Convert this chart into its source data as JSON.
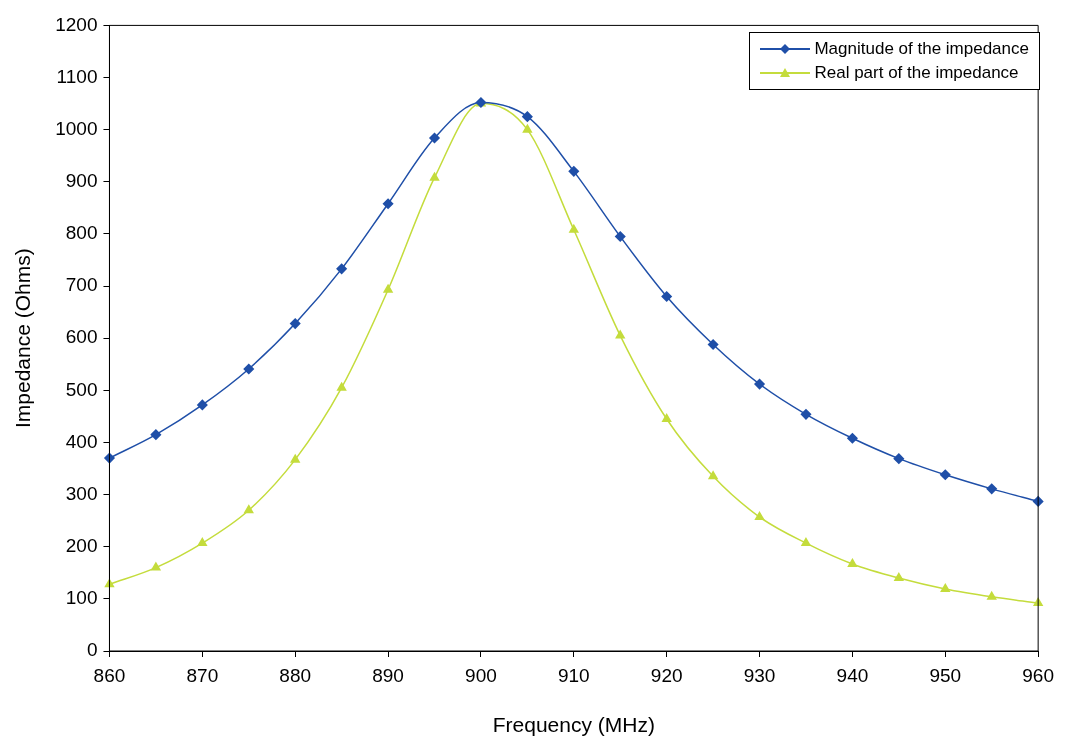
{
  "chart_data": {
    "type": "line",
    "xlabel": "Frequency (MHz)",
    "ylabel": "Impedance (Ohms)",
    "x": [
      860,
      865,
      870,
      875,
      880,
      885,
      890,
      895,
      900,
      905,
      910,
      915,
      920,
      925,
      930,
      935,
      940,
      945,
      950,
      955,
      960
    ],
    "xlim": [
      860,
      960
    ],
    "xticks": [
      860,
      870,
      880,
      890,
      900,
      910,
      920,
      930,
      940,
      950,
      960
    ],
    "ylim": [
      0,
      1200
    ],
    "yticks": [
      0,
      100,
      200,
      300,
      400,
      500,
      600,
      700,
      800,
      900,
      1000,
      1100,
      1200
    ],
    "grid": false,
    "legend": "top right",
    "line_style": "solid",
    "series": [
      {
        "name": "Magnitude of the impedance",
        "color": "#1f4fa8",
        "marker": "diamond",
        "values": [
          370,
          415,
          472,
          541,
          628,
          733,
          858,
          984,
          1052,
          1025,
          920,
          795,
          680,
          588,
          512,
          454,
          408,
          369,
          338,
          311,
          287
        ]
      },
      {
        "name": "Real part of the impedance",
        "color": "#c4dc3c",
        "marker": "triangle",
        "values": [
          128,
          160,
          207,
          270,
          367,
          505,
          693,
          908,
          1050,
          1000,
          808,
          605,
          445,
          335,
          257,
          207,
          167,
          140,
          119,
          104,
          92
        ]
      }
    ]
  }
}
